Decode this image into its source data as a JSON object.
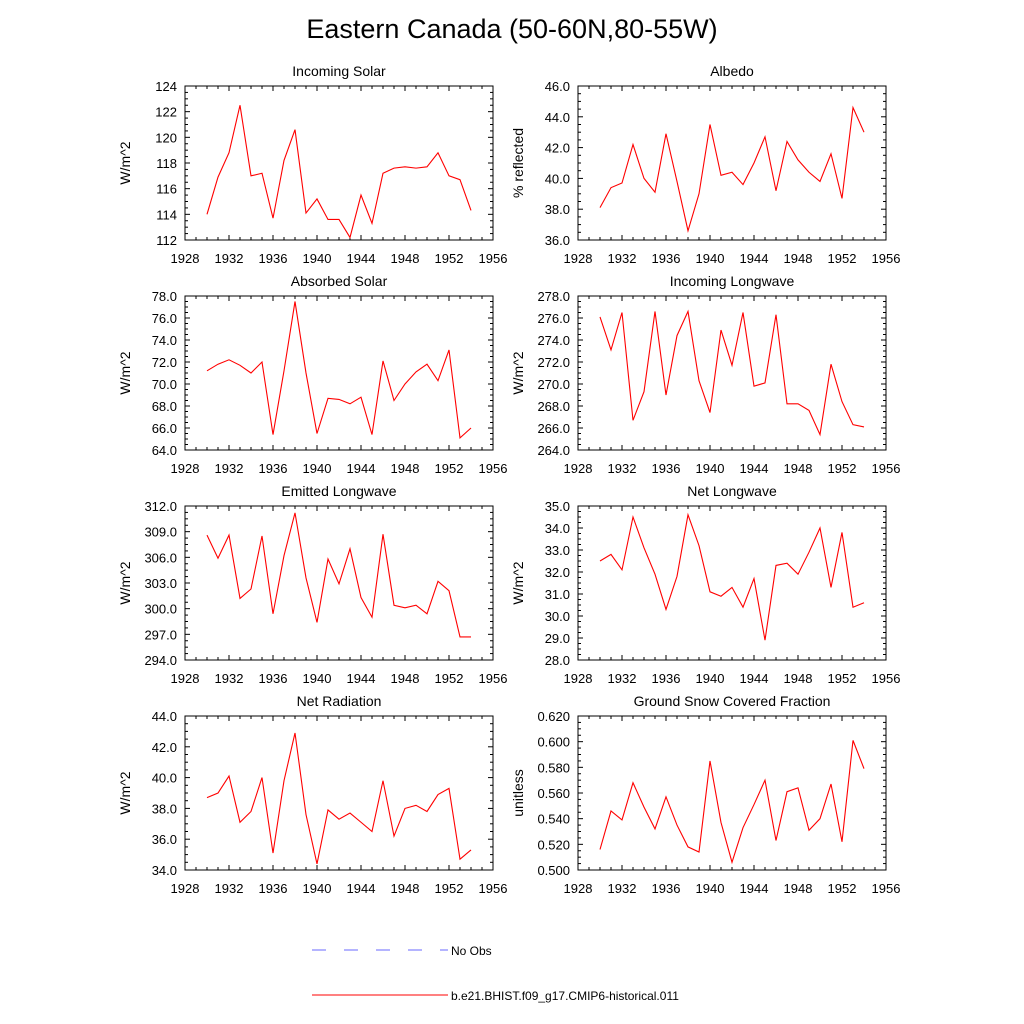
{
  "page": {
    "title": "Eastern Canada (50-60N,80-55W)"
  },
  "legend": {
    "items": [
      {
        "label": "No Obs",
        "color": "#6a6aff",
        "style": "dashed"
      },
      {
        "label": "b.e21.BHIST.f09_g17.CMIP6-historical.011",
        "color": "#ff0000",
        "style": "solid"
      }
    ]
  },
  "chart_data": [
    {
      "type": "line",
      "title": "Incoming Solar",
      "xlabel": "",
      "ylabel": "W/m^2",
      "xlim": [
        1928,
        1956
      ],
      "ylim": [
        112,
        124
      ],
      "xticks": [
        "1928",
        "1932",
        "1936",
        "1940",
        "1944",
        "1948",
        "1952",
        "1956"
      ],
      "yticks": [
        "112",
        "114",
        "116",
        "118",
        "120",
        "122",
        "124"
      ],
      "x": [
        1930,
        1931,
        1932,
        1933,
        1934,
        1935,
        1936,
        1937,
        1938,
        1939,
        1940,
        1941,
        1942,
        1943,
        1944,
        1945,
        1946,
        1947,
        1948,
        1949,
        1950,
        1951,
        1952,
        1953,
        1954
      ],
      "series": [
        {
          "name": "b.e21.BHIST.f09_g17.CMIP6-historical.011",
          "color": "#ff0000",
          "values": [
            114.0,
            116.9,
            118.8,
            122.5,
            117.0,
            117.2,
            113.7,
            118.2,
            120.6,
            114.1,
            115.2,
            113.6,
            113.6,
            112.2,
            115.5,
            113.3,
            117.2,
            117.6,
            117.7,
            117.6,
            117.7,
            118.8,
            117.0,
            116.7,
            114.3
          ]
        }
      ]
    },
    {
      "type": "line",
      "title": "Albedo",
      "xlabel": "",
      "ylabel": "% reflected",
      "xlim": [
        1928,
        1956
      ],
      "ylim": [
        36.0,
        46.0
      ],
      "xticks": [
        "1928",
        "1932",
        "1936",
        "1940",
        "1944",
        "1948",
        "1952",
        "1956"
      ],
      "yticks": [
        "36.0",
        "38.0",
        "40.0",
        "42.0",
        "44.0",
        "46.0"
      ],
      "x": [
        1930,
        1931,
        1932,
        1933,
        1934,
        1935,
        1936,
        1937,
        1938,
        1939,
        1940,
        1941,
        1942,
        1943,
        1944,
        1945,
        1946,
        1947,
        1948,
        1949,
        1950,
        1951,
        1952,
        1953,
        1954
      ],
      "series": [
        {
          "name": "b.e21.BHIST.f09_g17.CMIP6-historical.011",
          "color": "#ff0000",
          "values": [
            38.1,
            39.4,
            39.7,
            42.2,
            40.0,
            39.1,
            42.9,
            39.8,
            36.6,
            39.0,
            43.5,
            40.2,
            40.4,
            39.6,
            41.0,
            42.7,
            39.2,
            42.4,
            41.2,
            40.4,
            39.8,
            41.6,
            38.7,
            44.6,
            43.0
          ]
        }
      ]
    },
    {
      "type": "line",
      "title": "Absorbed Solar",
      "xlabel": "",
      "ylabel": "W/m^2",
      "xlim": [
        1928,
        1956
      ],
      "ylim": [
        64.0,
        78.0
      ],
      "xticks": [
        "1928",
        "1932",
        "1936",
        "1940",
        "1944",
        "1948",
        "1952",
        "1956"
      ],
      "yticks": [
        "64.0",
        "66.0",
        "68.0",
        "70.0",
        "72.0",
        "74.0",
        "76.0",
        "78.0"
      ],
      "x": [
        1930,
        1931,
        1932,
        1933,
        1934,
        1935,
        1936,
        1937,
        1938,
        1939,
        1940,
        1941,
        1942,
        1943,
        1944,
        1945,
        1946,
        1947,
        1948,
        1949,
        1950,
        1951,
        1952,
        1953,
        1954
      ],
      "series": [
        {
          "name": "b.e21.BHIST.f09_g17.CMIP6-historical.011",
          "color": "#ff0000",
          "values": [
            71.2,
            71.8,
            72.2,
            71.7,
            71.0,
            72.0,
            65.4,
            71.2,
            77.5,
            71.0,
            65.5,
            68.7,
            68.6,
            68.2,
            68.8,
            65.4,
            72.1,
            68.5,
            70.0,
            71.1,
            71.8,
            70.3,
            73.1,
            65.1,
            66.0
          ]
        }
      ]
    },
    {
      "type": "line",
      "title": "Incoming Longwave",
      "xlabel": "",
      "ylabel": "W/m^2",
      "xlim": [
        1928,
        1956
      ],
      "ylim": [
        264.0,
        278.0
      ],
      "xticks": [
        "1928",
        "1932",
        "1936",
        "1940",
        "1944",
        "1948",
        "1952",
        "1956"
      ],
      "yticks": [
        "264.0",
        "266.0",
        "268.0",
        "270.0",
        "272.0",
        "274.0",
        "276.0",
        "278.0"
      ],
      "x": [
        1930,
        1931,
        1932,
        1933,
        1934,
        1935,
        1936,
        1937,
        1938,
        1939,
        1940,
        1941,
        1942,
        1943,
        1944,
        1945,
        1946,
        1947,
        1948,
        1949,
        1950,
        1951,
        1952,
        1953,
        1954
      ],
      "series": [
        {
          "name": "b.e21.BHIST.f09_g17.CMIP6-historical.011",
          "color": "#ff0000",
          "values": [
            276.1,
            273.1,
            276.5,
            266.7,
            269.3,
            276.6,
            269.0,
            274.4,
            276.6,
            270.3,
            267.4,
            274.9,
            271.7,
            276.5,
            269.8,
            270.1,
            276.3,
            268.2,
            268.2,
            267.6,
            265.4,
            271.8,
            268.4,
            266.3,
            266.1
          ]
        }
      ]
    },
    {
      "type": "line",
      "title": "Emitted Longwave",
      "xlabel": "",
      "ylabel": "W/m^2",
      "xlim": [
        1928,
        1956
      ],
      "ylim": [
        294.0,
        312.0
      ],
      "xticks": [
        "1928",
        "1932",
        "1936",
        "1940",
        "1944",
        "1948",
        "1952",
        "1956"
      ],
      "yticks": [
        "294.0",
        "297.0",
        "300.0",
        "303.0",
        "306.0",
        "309.0",
        "312.0"
      ],
      "x": [
        1930,
        1931,
        1932,
        1933,
        1934,
        1935,
        1936,
        1937,
        1938,
        1939,
        1940,
        1941,
        1942,
        1943,
        1944,
        1945,
        1946,
        1947,
        1948,
        1949,
        1950,
        1951,
        1952,
        1953,
        1954
      ],
      "series": [
        {
          "name": "b.e21.BHIST.f09_g17.CMIP6-historical.011",
          "color": "#ff0000",
          "values": [
            308.6,
            305.9,
            308.6,
            301.2,
            302.3,
            308.5,
            299.4,
            306.2,
            311.2,
            303.6,
            298.4,
            305.8,
            302.9,
            307.0,
            301.3,
            299.0,
            308.7,
            300.4,
            300.1,
            300.4,
            299.4,
            303.2,
            302.1,
            296.7,
            296.7
          ]
        }
      ]
    },
    {
      "type": "line",
      "title": "Net Longwave",
      "xlabel": "",
      "ylabel": "W/m^2",
      "xlim": [
        1928,
        1956
      ],
      "ylim": [
        28.0,
        35.0
      ],
      "xticks": [
        "1928",
        "1932",
        "1936",
        "1940",
        "1944",
        "1948",
        "1952",
        "1956"
      ],
      "yticks": [
        "28.0",
        "29.0",
        "30.0",
        "31.0",
        "32.0",
        "33.0",
        "34.0",
        "35.0"
      ],
      "x": [
        1930,
        1931,
        1932,
        1933,
        1934,
        1935,
        1936,
        1937,
        1938,
        1939,
        1940,
        1941,
        1942,
        1943,
        1944,
        1945,
        1946,
        1947,
        1948,
        1949,
        1950,
        1951,
        1952,
        1953,
        1954
      ],
      "series": [
        {
          "name": "b.e21.BHIST.f09_g17.CMIP6-historical.011",
          "color": "#ff0000",
          "values": [
            32.5,
            32.8,
            32.1,
            34.5,
            33.1,
            31.9,
            30.3,
            31.8,
            34.6,
            33.2,
            31.1,
            30.9,
            31.3,
            30.4,
            31.7,
            28.9,
            32.3,
            32.4,
            31.9,
            32.9,
            34.0,
            31.3,
            33.8,
            30.4,
            30.6
          ]
        }
      ]
    },
    {
      "type": "line",
      "title": "Net Radiation",
      "xlabel": "",
      "ylabel": "W/m^2",
      "xlim": [
        1928,
        1956
      ],
      "ylim": [
        34.0,
        44.0
      ],
      "xticks": [
        "1928",
        "1932",
        "1936",
        "1940",
        "1944",
        "1948",
        "1952",
        "1956"
      ],
      "yticks": [
        "34.0",
        "36.0",
        "38.0",
        "40.0",
        "42.0",
        "44.0"
      ],
      "x": [
        1930,
        1931,
        1932,
        1933,
        1934,
        1935,
        1936,
        1937,
        1938,
        1939,
        1940,
        1941,
        1942,
        1943,
        1944,
        1945,
        1946,
        1947,
        1948,
        1949,
        1950,
        1951,
        1952,
        1953,
        1954
      ],
      "series": [
        {
          "name": "b.e21.BHIST.f09_g17.CMIP6-historical.011",
          "color": "#ff0000",
          "values": [
            38.7,
            39.0,
            40.1,
            37.1,
            37.8,
            40.0,
            35.1,
            39.8,
            42.9,
            37.6,
            34.4,
            37.9,
            37.3,
            37.7,
            37.1,
            36.5,
            39.8,
            36.2,
            38.0,
            38.2,
            37.8,
            38.9,
            39.3,
            34.7,
            35.3
          ]
        }
      ]
    },
    {
      "type": "line",
      "title": "Ground Snow Covered Fraction",
      "xlabel": "",
      "ylabel": "unitless",
      "xlim": [
        1928,
        1956
      ],
      "ylim": [
        0.5,
        0.62
      ],
      "xticks": [
        "1928",
        "1932",
        "1936",
        "1940",
        "1944",
        "1948",
        "1952",
        "1956"
      ],
      "yticks": [
        "0.500",
        "0.520",
        "0.540",
        "0.560",
        "0.580",
        "0.600",
        "0.620"
      ],
      "x": [
        1930,
        1931,
        1932,
        1933,
        1934,
        1935,
        1936,
        1937,
        1938,
        1939,
        1940,
        1941,
        1942,
        1943,
        1944,
        1945,
        1946,
        1947,
        1948,
        1949,
        1950,
        1951,
        1952,
        1953,
        1954
      ],
      "series": [
        {
          "name": "b.e21.BHIST.f09_g17.CMIP6-historical.011",
          "color": "#ff0000",
          "values": [
            0.516,
            0.546,
            0.539,
            0.568,
            0.549,
            0.532,
            0.557,
            0.535,
            0.518,
            0.514,
            0.585,
            0.537,
            0.506,
            0.533,
            0.551,
            0.57,
            0.523,
            0.561,
            0.564,
            0.531,
            0.54,
            0.567,
            0.522,
            0.601,
            0.579
          ]
        }
      ]
    }
  ]
}
